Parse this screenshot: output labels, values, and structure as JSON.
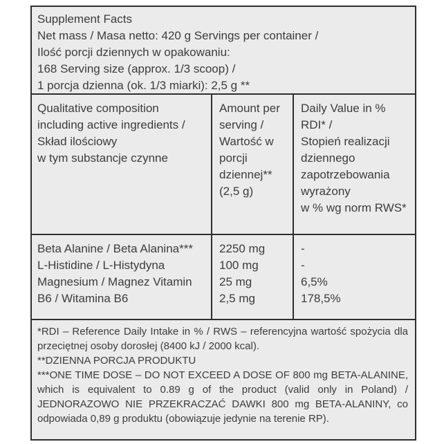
{
  "label": {
    "colors": {
      "cell_background": "#ebebeb",
      "border": "#2e2e2e",
      "text": "#3c3c3c",
      "page_background": "#ffffff"
    },
    "header": {
      "title": "Supplement Facts",
      "lines": [
        "Supplement Facts",
        "Net mass / Masa netto: 420 g Servings per container /",
        "Ilość porcji dziennych w opakowaniu:",
        "168 Serving size (approx. 1/3 scoop) /",
        "1 porcja dzienna (ok. 1/3 miarki): 2,5 g **"
      ]
    },
    "table": {
      "column_headers": {
        "composition": [
          "Qualitative composition",
          "including active ingredients /",
          "Skład ilościowy",
          "w tym substancje czynne"
        ],
        "amount": [
          "Amount per",
          "serving /",
          "Wartość w",
          "porcji",
          "dziennej**",
          "(2,5 g)"
        ],
        "daily_value": [
          "Daily Value in %",
          "RDI* /",
          "Stopień realizacji",
          "dziennego",
          "zapotrzebowania",
          "wyrażony",
          "w % wg norm RWS*"
        ]
      },
      "rows": {
        "ingredient_names": [
          "Beta Alanine / Beta Alanina***",
          "L-Histidine / L-Histydyna",
          "Magnesium / Magnez Vitamin",
          "B6 / Witamina B6"
        ],
        "amounts": [
          "2250 mg",
          "100 mg",
          "25 mg",
          "2,5 mg"
        ],
        "daily_values": [
          "-",
          "-",
          "6,5%",
          "178,5%"
        ]
      }
    },
    "footnotes": {
      "paragraphs": [
        "*RDI – Reference Daily Intake in % / RWS – referencyjna wartość spożycia dla przeciętnej osoby dorosłej (8400 kJ / 2000 kcal).",
        "**DZIENNA PORCJA PRODUKTU",
        "***ONE TIME DOSE – DO NOT EXCEED A DOSE OF 800 mg BETA-ALANINE, which is equivalent to 0.89 g of the product (valid only in Poland) / JEDNORAZOWO NIE PRZEKRACZAĆ DAWKI 800 mg BETA-ALANINY, co odpowiada 0,89 g produktu (obowiązuje jedynie na terenie RP)."
      ]
    }
  }
}
